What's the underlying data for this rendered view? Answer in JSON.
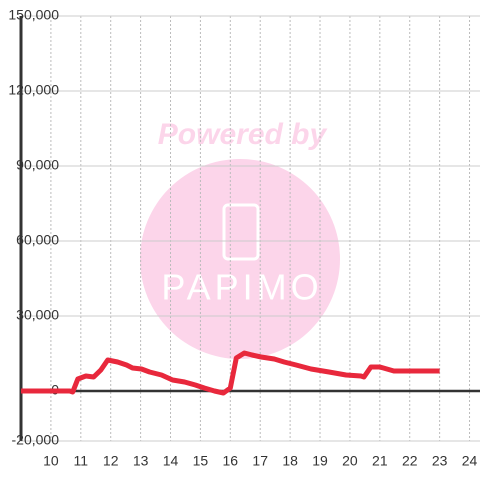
{
  "chart_data": {
    "type": "line",
    "x": [
      9,
      10.63,
      10.73,
      10.9,
      11.17,
      11.43,
      11.67,
      11.9,
      12.23,
      12.53,
      12.73,
      13.03,
      13.3,
      13.7,
      14.07,
      14.47,
      14.83,
      15.13,
      15.47,
      15.77,
      16,
      16.2,
      16.47,
      16.73,
      17.03,
      17.47,
      17.8,
      18.2,
      18.7,
      19.3,
      19.87,
      20.37,
      20.47,
      20.7,
      21,
      21.47,
      22.3,
      23
    ],
    "series": [
      {
        "color": "#e8283c",
        "values": [
          0,
          0,
          -400,
          4800,
          6000,
          5600,
          8400,
          12400,
          11600,
          10400,
          9200,
          8800,
          7600,
          6400,
          4400,
          3600,
          2400,
          1200,
          0,
          -800,
          1200,
          13200,
          15200,
          14400,
          13600,
          12800,
          11600,
          10400,
          8800,
          7600,
          6400,
          6000,
          5600,
          9600,
          9600,
          8000,
          8000,
          8000
        ]
      }
    ],
    "xlim": [
      9,
      24.35
    ],
    "xticks": [
      10,
      11,
      12,
      13,
      14,
      15,
      16,
      17,
      18,
      19,
      20,
      21,
      22,
      23,
      24
    ],
    "ylim": [
      -20000,
      150000
    ],
    "yticks": [
      {
        "value": -20000,
        "label": "-20,000"
      },
      0,
      {
        "value": 30000,
        "label": "30,000"
      },
      {
        "value": 60000,
        "label": "60,000"
      },
      {
        "value": 90000,
        "label": "90,000"
      },
      {
        "value": 120000,
        "label": "120,000"
      },
      {
        "value": 150000,
        "label": "150,000"
      }
    ],
    "grid": true
  },
  "watermark": {
    "text": "Powered by",
    "logo": "PAPIMO"
  }
}
